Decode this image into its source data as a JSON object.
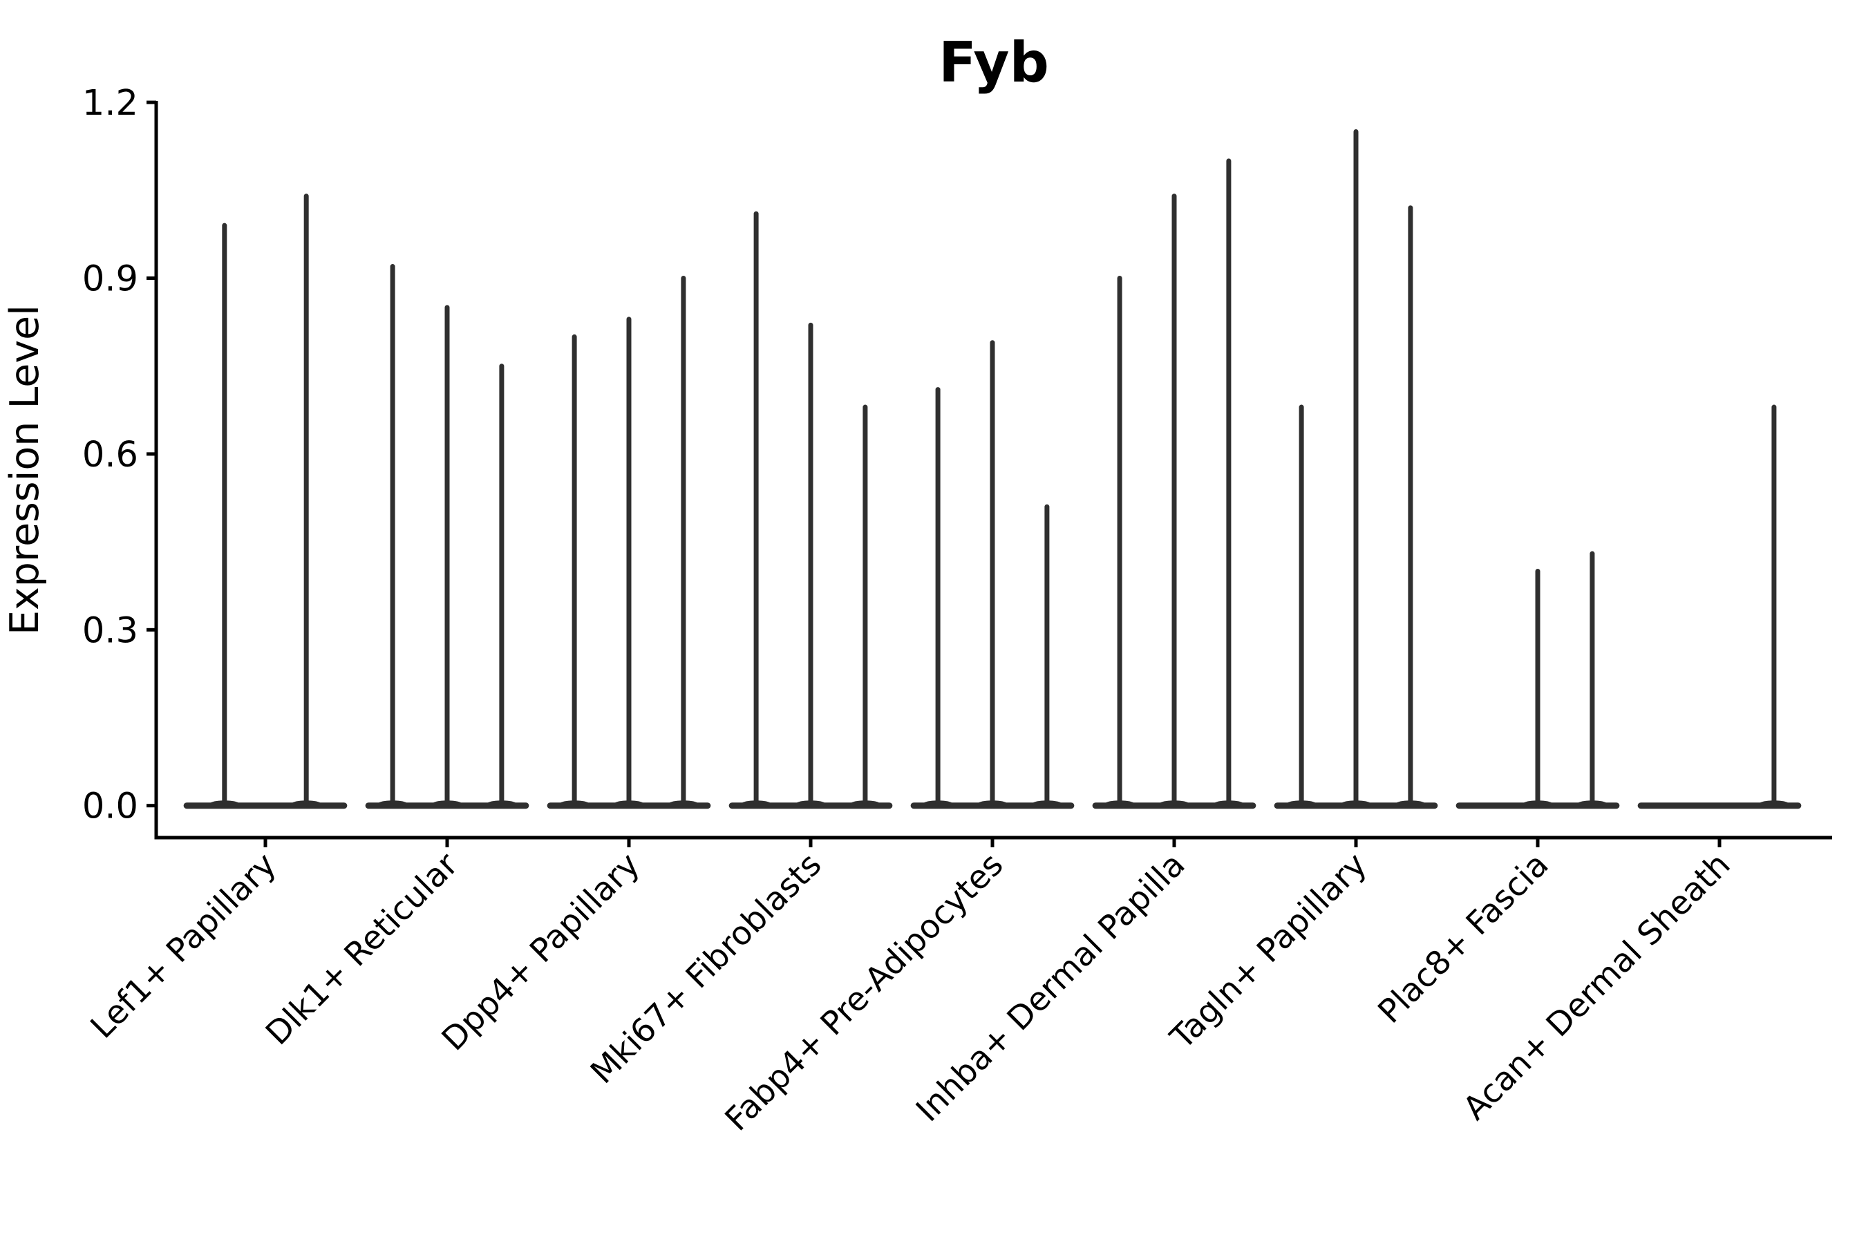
{
  "chart_data": {
    "type": "violin",
    "title": "Fyb",
    "xlabel": "",
    "ylabel": "Expression Level",
    "ylim": [
      0,
      1.26
    ],
    "yticks": [
      0.0,
      0.3,
      0.6,
      0.9,
      1.2
    ],
    "ytick_labels": [
      "0.0",
      "0.3",
      "0.6",
      "0.9",
      "1.2"
    ],
    "grid": false,
    "legend": false,
    "x_tick_rotation_deg": 45,
    "categories": [
      "Lef1+ Papillary",
      "Dlk1+ Reticular",
      "Dpp4+ Papillary",
      "Mki67+ Fibroblasts",
      "Fabp4+ Pre-Adipocytes",
      "Inhba+ Dermal Papilla",
      "Tagln+ Papillary",
      "Plac8+ Fascia",
      "Acan+ Dermal Sheath"
    ],
    "series": [
      {
        "category": "Lef1+ Papillary",
        "violin_maxima": [
          0.99,
          1.04
        ]
      },
      {
        "category": "Dlk1+ Reticular",
        "violin_maxima": [
          0.92,
          0.85,
          0.75
        ]
      },
      {
        "category": "Dpp4+ Papillary",
        "violin_maxima": [
          0.8,
          0.83,
          0.9
        ]
      },
      {
        "category": "Mki67+ Fibroblasts",
        "violin_maxima": [
          1.01,
          0.82,
          0.68
        ]
      },
      {
        "category": "Fabp4+ Pre-Adipocytes",
        "violin_maxima": [
          0.71,
          0.79,
          0.51
        ]
      },
      {
        "category": "Inhba+ Dermal Papilla",
        "violin_maxima": [
          0.9,
          1.04,
          1.1
        ]
      },
      {
        "category": "Tagln+ Papillary",
        "violin_maxima": [
          0.68,
          1.15,
          1.02
        ]
      },
      {
        "category": "Plac8+ Fascia",
        "violin_maxima": [
          0.0,
          0.4,
          0.43
        ]
      },
      {
        "category": "Acan+ Dermal Sheath",
        "violin_maxima": [
          0.0,
          0.0,
          0.68
        ]
      }
    ],
    "colors": {
      "violin_stroke": "#2f2f2f",
      "axis": "#000000",
      "text": "#000000",
      "background": "#ffffff"
    }
  }
}
